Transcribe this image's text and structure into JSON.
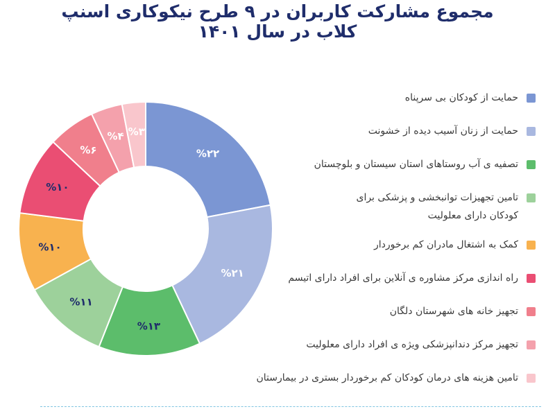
{
  "chart_data": {
    "type": "pie",
    "title": "مجموع مشارکت کاربران در ۹ طرح نیکوکاری اسنپ کلاب در سال ۱۴۰۱",
    "slices": [
      {
        "label": "حمایت از کودکان بی سرپناه",
        "value": 22,
        "text": "%۲۲",
        "color": "#7b96d3",
        "text_color": "#ffffff"
      },
      {
        "label": "حمایت از زنان آسیب دیده از خشونت",
        "value": 21,
        "text": "%۲۱",
        "color": "#a9b8e0",
        "text_color": "#ffffff"
      },
      {
        "label": "تصفیه ی آب روستاهای استان سیستان و بلوچستان",
        "value": 13,
        "text": "%۱۳",
        "color": "#5cbd6b",
        "text_color": "#1f2d6b"
      },
      {
        "label": "تامین تجهیزات توانبخشی و پزشکی برای کودکان دارای معلولیت",
        "value": 11,
        "text": "%۱۱",
        "color": "#9dd19b",
        "text_color": "#1f2d6b"
      },
      {
        "label": "کمک به اشتغال مادران کم برخوردار",
        "value": 10,
        "text": "%۱۰",
        "color": "#f8b24f",
        "text_color": "#1f2d6b"
      },
      {
        "label": "راه اندازی مرکز مشاوره ی آنلاین برای افراد دارای اتیسم",
        "value": 10,
        "text": "%۱۰",
        "color": "#ea4e73",
        "text_color": "#1f2d6b"
      },
      {
        "label": "تجهیز خانه های شهرستان دلگان",
        "value": 6,
        "text": "%۶",
        "color": "#f07f8c",
        "text_color": "#ffffff"
      },
      {
        "label": "تجهیز مرکز دندانپزشکی ویژه ی افراد دارای معلولیت",
        "value": 4,
        "text": "%۴",
        "color": "#f4a1ac",
        "text_color": "#ffffff"
      },
      {
        "label": "تامین هزینه های درمان کودکان کم برخوردار بستری در بیمارستان",
        "value": 3,
        "text": "%۳",
        "color": "#f9c6cc",
        "text_color": "#ffffff"
      }
    ]
  }
}
